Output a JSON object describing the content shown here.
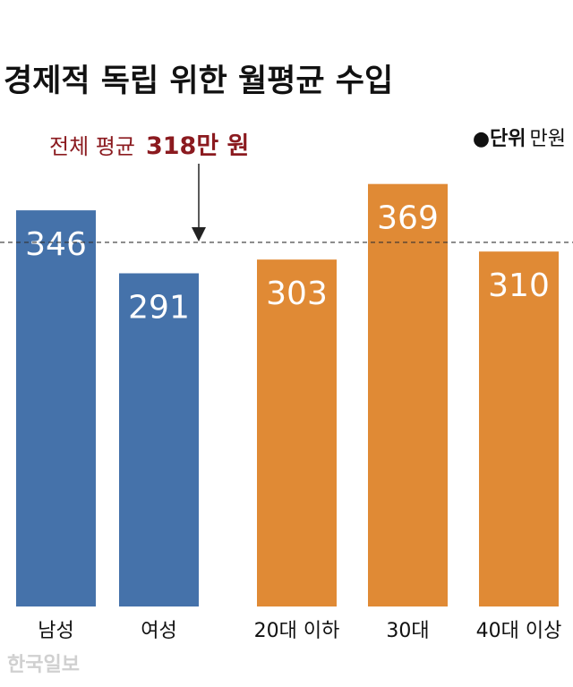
{
  "chart_data": {
    "type": "bar",
    "title": "경제적 독립 위한 월평균 수입",
    "unit_label": "●단위",
    "unit": "만원",
    "categories": [
      "남성",
      "여성",
      "20대 이하",
      "30대",
      "40대 이상"
    ],
    "values": [
      346,
      291,
      303,
      369,
      310
    ],
    "colors": [
      "#4572aa",
      "#4572aa",
      "#e08a35",
      "#e08a35",
      "#e08a35"
    ],
    "average_line": {
      "text": "전체 평균",
      "value": 318,
      "value_label": "318만 원"
    },
    "source": "한국일보"
  }
}
